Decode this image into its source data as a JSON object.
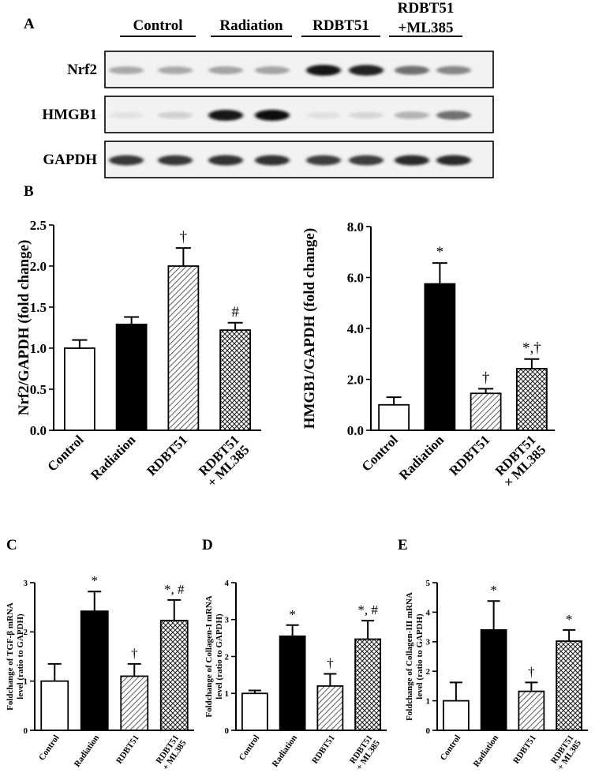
{
  "panel_labels": {
    "a": "A",
    "b": "B",
    "c": "C",
    "d": "D",
    "e": "E"
  },
  "blot": {
    "groups": [
      "Control",
      "Radiation",
      "RDBT51",
      "RDBT51\n+ML385"
    ],
    "rows": [
      {
        "name": "Nrf2",
        "intensity": [
          0.3,
          0.3,
          0.32,
          0.32,
          0.95,
          0.9,
          0.55,
          0.45
        ]
      },
      {
        "name": "HMGB1",
        "intensity": [
          0.04,
          0.12,
          0.95,
          0.98,
          0.05,
          0.1,
          0.25,
          0.55
        ]
      },
      {
        "name": "GAPDH",
        "intensity": [
          0.8,
          0.8,
          0.82,
          0.82,
          0.78,
          0.78,
          0.85,
          0.85
        ]
      }
    ]
  },
  "colors": {
    "control_fill": "#ffffff",
    "radiation_fill": "#000000",
    "bar_stroke": "#000000"
  },
  "chart_data": [
    {
      "panel": "B-left",
      "type": "bar",
      "categories": [
        "Control",
        "Radiation",
        "RDBT51",
        "RDBT51\n+ ML385"
      ],
      "values": [
        1.0,
        1.29,
        2.0,
        1.22
      ],
      "errors": [
        0.1,
        0.09,
        0.22,
        0.09
      ],
      "annotations": [
        "",
        "",
        "†",
        "#"
      ],
      "patterns": [
        "white",
        "black",
        "hatch",
        "crosshatch"
      ],
      "ylabel": "Nrf2/GAPDH (fold change)",
      "ylim": [
        0,
        2.5
      ],
      "yticks": [
        "0.0",
        "0.5",
        "1.0",
        "1.5",
        "2.0",
        "2.5"
      ]
    },
    {
      "panel": "B-right",
      "type": "bar",
      "categories": [
        "Control",
        "Radiation",
        "RDBT51",
        "RDBT51\n× ML385"
      ],
      "values": [
        1.0,
        5.75,
        1.45,
        2.42
      ],
      "errors": [
        0.3,
        0.82,
        0.18,
        0.38
      ],
      "annotations": [
        "",
        "*",
        "†",
        "*,†"
      ],
      "patterns": [
        "white",
        "black",
        "hatch",
        "crosshatch"
      ],
      "ylabel": "HMGB1/GAPDH (fold change)",
      "ylim": [
        0,
        8.0
      ],
      "yticks": [
        "0.0",
        "2.0",
        "4.0",
        "6.0",
        "8.0"
      ]
    },
    {
      "panel": "C",
      "type": "bar",
      "categories": [
        "Control",
        "Radiation",
        "RDBT51",
        "RDBT51\n+ ML385"
      ],
      "values": [
        1.0,
        2.42,
        1.1,
        2.23
      ],
      "errors": [
        0.35,
        0.4,
        0.25,
        0.42
      ],
      "annotations": [
        "",
        "*",
        "†",
        "*, #"
      ],
      "patterns": [
        "white",
        "black",
        "hatch",
        "crosshatch"
      ],
      "ylabel": "Foldchange of TGF-β mRNA\nlevel (ratio to GAPDH)",
      "ylim": [
        0,
        3
      ],
      "yticks": [
        "0",
        "1",
        "2",
        "3"
      ]
    },
    {
      "panel": "D",
      "type": "bar",
      "categories": [
        "Control",
        "Radiation",
        "RDBT51",
        "RDBT51\n+ ML385"
      ],
      "values": [
        1.0,
        2.55,
        1.2,
        2.47
      ],
      "errors": [
        0.08,
        0.3,
        0.33,
        0.5
      ],
      "annotations": [
        "",
        "*",
        "†",
        "*, #"
      ],
      "patterns": [
        "white",
        "black",
        "hatch",
        "crosshatch"
      ],
      "ylabel": "Foldchange of Collagen-I mRNA\nlevel (ratio to GAPDH)",
      "ylim": [
        0,
        4
      ],
      "yticks": [
        "0",
        "1",
        "2",
        "3",
        "4"
      ]
    },
    {
      "panel": "E",
      "type": "bar",
      "categories": [
        "Control",
        "Radiation",
        "RDBT51",
        "RDBT51\n+ ML385"
      ],
      "values": [
        1.0,
        3.4,
        1.32,
        3.02
      ],
      "errors": [
        0.62,
        0.98,
        0.3,
        0.38
      ],
      "annotations": [
        "",
        "*",
        "†",
        "*"
      ],
      "patterns": [
        "white",
        "black",
        "hatch",
        "crosshatch"
      ],
      "ylabel": "Foldchange of Collagen-III mRNA\nlevel (ratio to GAPDH)",
      "ylim": [
        0,
        5
      ],
      "yticks": [
        "0",
        "1",
        "2",
        "3",
        "4",
        "5"
      ]
    }
  ]
}
